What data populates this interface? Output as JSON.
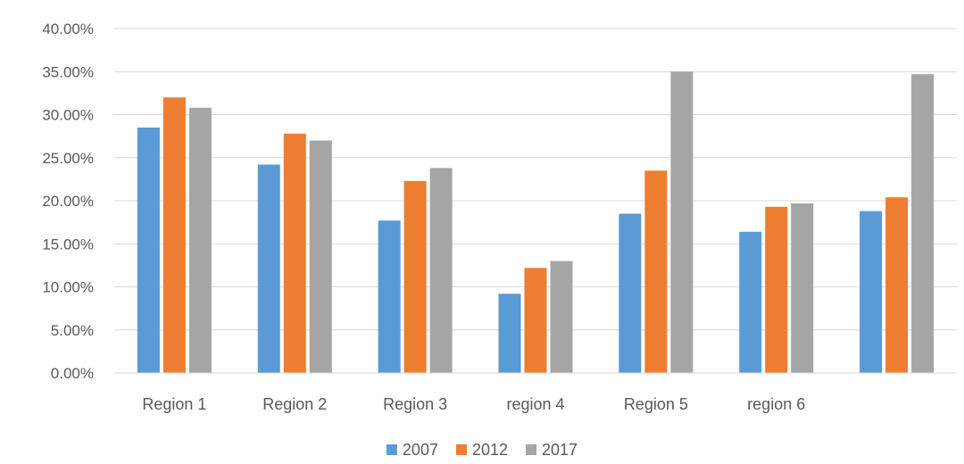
{
  "chart_data": {
    "type": "bar",
    "title": "",
    "xlabel": "",
    "ylabel": "",
    "categories": [
      "Region 1",
      "Region 2",
      "Region 3",
      "region 4",
      "Region 5",
      "region 6",
      ""
    ],
    "series": [
      {
        "name": "2007",
        "color": "#5B9BD5",
        "values": [
          0.285,
          0.242,
          0.177,
          0.092,
          0.185,
          0.164,
          0.188
        ]
      },
      {
        "name": "2012",
        "color": "#ED7D31",
        "values": [
          0.32,
          0.278,
          0.223,
          0.122,
          0.235,
          0.193,
          0.204
        ]
      },
      {
        "name": "2017",
        "color": "#A5A5A5",
        "values": [
          0.308,
          0.27,
          0.238,
          0.13,
          0.35,
          0.197,
          0.347
        ]
      }
    ],
    "ylim": [
      0,
      0.4
    ],
    "yticks": [
      0,
      0.05,
      0.1,
      0.15,
      0.2,
      0.25,
      0.3,
      0.35,
      0.4
    ],
    "ytick_labels": [
      "0.00%",
      "5.00%",
      "10.00%",
      "15.00%",
      "20.00%",
      "25.00%",
      "30.00%",
      "35.00%",
      "40.00%"
    ],
    "grid": true,
    "legend_position": "bottom"
  }
}
